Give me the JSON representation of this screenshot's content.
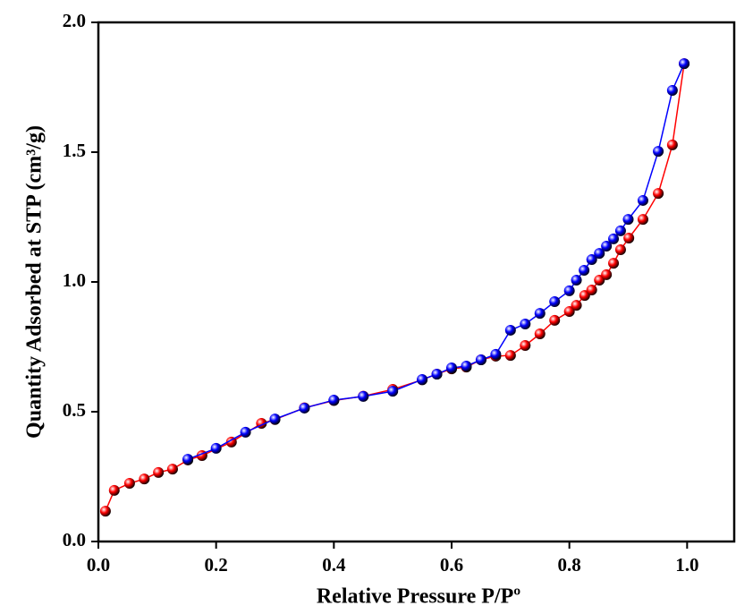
{
  "chart_data": {
    "type": "line",
    "x_label": "Relative Pressure P/Pº",
    "y_label": "Quantity Adsorbed at STP (cm³/g)",
    "xlim": [
      0,
      1.08
    ],
    "ylim": [
      0,
      2.0
    ],
    "xticks": [
      {
        "value": 0,
        "label": "0.0"
      },
      0.2,
      0.4,
      0.6,
      0.8,
      {
        "value": 1,
        "label": "1.0"
      }
    ],
    "yticks": [
      {
        "value": 0,
        "label": "0.0"
      },
      0.5,
      {
        "value": 1,
        "label": "1.0"
      },
      1.5,
      {
        "value": 2,
        "label": "2.0"
      }
    ],
    "series": [
      {
        "color": "#ff0000",
        "x": [
          0.012,
          0.027,
          0.053,
          0.078,
          0.102,
          0.126,
          0.152,
          0.176,
          0.226,
          0.277,
          0.3,
          0.35,
          0.4,
          0.45,
          0.5,
          0.55,
          0.575,
          0.6,
          0.625,
          0.65,
          0.675,
          0.7,
          0.725,
          0.75,
          0.775,
          0.8,
          0.812,
          0.826,
          0.838,
          0.851,
          0.863,
          0.875,
          0.887,
          0.901,
          0.925,
          0.951,
          0.975,
          0.995
        ],
        "values": [
          0.117,
          0.197,
          0.224,
          0.241,
          0.266,
          0.279,
          0.314,
          0.331,
          0.383,
          0.455,
          0.47,
          0.515,
          0.543,
          0.56,
          0.586,
          0.623,
          0.645,
          0.665,
          0.672,
          0.7,
          0.714,
          0.717,
          0.755,
          0.8,
          0.852,
          0.886,
          0.91,
          0.948,
          0.969,
          1.007,
          1.028,
          1.072,
          1.124,
          1.169,
          1.241,
          1.341,
          1.528,
          1.841
        ]
      },
      {
        "color": "#0000ff",
        "x": [
          0.152,
          0.2,
          0.25,
          0.3,
          0.35,
          0.4,
          0.45,
          0.5,
          0.55,
          0.575,
          0.6,
          0.625,
          0.65,
          0.675,
          0.7,
          0.725,
          0.75,
          0.775,
          0.8,
          0.812,
          0.825,
          0.838,
          0.851,
          0.863,
          0.875,
          0.887,
          0.9,
          0.925,
          0.951,
          0.975,
          0.995
        ],
        "values": [
          0.317,
          0.359,
          0.421,
          0.472,
          0.514,
          0.545,
          0.559,
          0.579,
          0.624,
          0.645,
          0.669,
          0.676,
          0.7,
          0.721,
          0.814,
          0.838,
          0.879,
          0.924,
          0.966,
          1.007,
          1.045,
          1.086,
          1.11,
          1.138,
          1.166,
          1.197,
          1.241,
          1.314,
          1.503,
          1.738,
          1.841
        ]
      }
    ]
  }
}
